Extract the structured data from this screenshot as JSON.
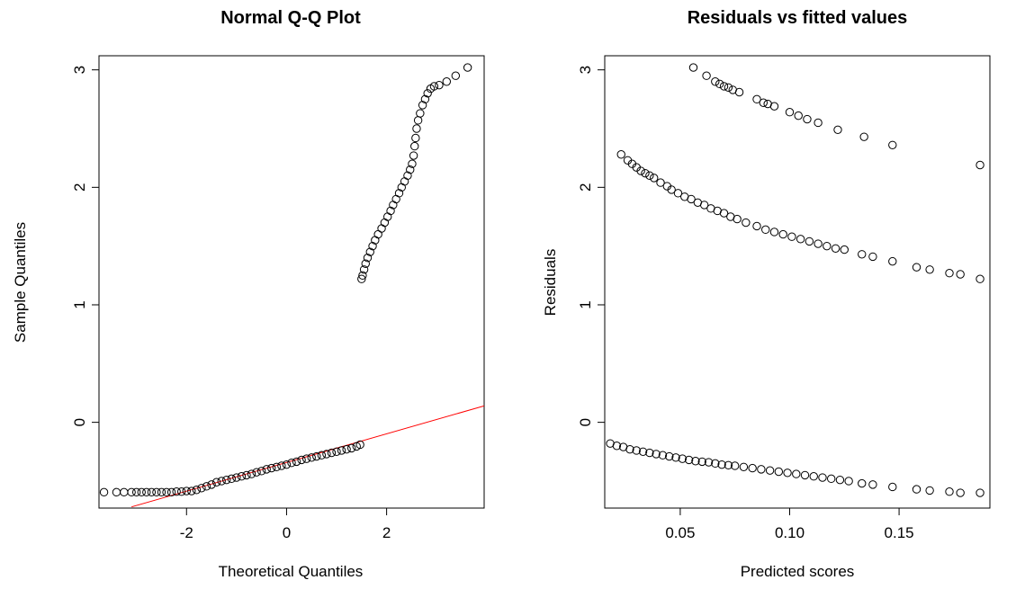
{
  "chart_data": [
    {
      "type": "scatter",
      "title": "Normal Q-Q Plot",
      "xlabel": "Theoretical Quantiles",
      "ylabel": "Sample Quantiles",
      "xlim": [
        -3.75,
        3.95
      ],
      "ylim": [
        -0.73,
        3.12
      ],
      "xticks": [
        -2,
        0,
        2
      ],
      "yticks": [
        0,
        1,
        2,
        3
      ],
      "xtick_labels": [
        "-2",
        "0",
        "2"
      ],
      "ytick_labels": [
        "0",
        "1",
        "2",
        "3"
      ],
      "grid": false,
      "point_marker": "open-circle",
      "reference_line": {
        "color": "#ff0000",
        "points": [
          [
            -3.1,
            -0.72
          ],
          [
            3.95,
            0.14
          ]
        ]
      },
      "series": [
        {
          "points": [
            [
              -3.65,
              -0.595
            ],
            [
              -3.4,
              -0.595
            ],
            [
              -3.25,
              -0.595
            ],
            [
              -3.1,
              -0.595
            ],
            [
              -3.0,
              -0.595
            ],
            [
              -2.9,
              -0.595
            ],
            [
              -2.8,
              -0.595
            ],
            [
              -2.7,
              -0.595
            ],
            [
              -2.6,
              -0.595
            ],
            [
              -2.5,
              -0.595
            ],
            [
              -2.4,
              -0.595
            ],
            [
              -2.3,
              -0.595
            ],
            [
              -2.2,
              -0.59
            ],
            [
              -2.1,
              -0.59
            ],
            [
              -2.0,
              -0.585
            ],
            [
              -1.9,
              -0.585
            ],
            [
              -1.8,
              -0.575
            ],
            [
              -1.7,
              -0.56
            ],
            [
              -1.6,
              -0.545
            ],
            [
              -1.5,
              -0.53
            ],
            [
              -1.4,
              -0.51
            ],
            [
              -1.3,
              -0.5
            ],
            [
              -1.2,
              -0.49
            ],
            [
              -1.1,
              -0.48
            ],
            [
              -1.0,
              -0.47
            ],
            [
              -0.9,
              -0.46
            ],
            [
              -0.8,
              -0.45
            ],
            [
              -0.7,
              -0.44
            ],
            [
              -0.6,
              -0.425
            ],
            [
              -0.5,
              -0.415
            ],
            [
              -0.4,
              -0.4
            ],
            [
              -0.3,
              -0.39
            ],
            [
              -0.2,
              -0.38
            ],
            [
              -0.1,
              -0.37
            ],
            [
              0.0,
              -0.36
            ],
            [
              0.1,
              -0.345
            ],
            [
              0.2,
              -0.335
            ],
            [
              0.3,
              -0.32
            ],
            [
              0.4,
              -0.31
            ],
            [
              0.5,
              -0.3
            ],
            [
              0.6,
              -0.29
            ],
            [
              0.7,
              -0.28
            ],
            [
              0.8,
              -0.27
            ],
            [
              0.9,
              -0.26
            ],
            [
              1.0,
              -0.25
            ],
            [
              1.1,
              -0.24
            ],
            [
              1.2,
              -0.23
            ],
            [
              1.3,
              -0.22
            ],
            [
              1.4,
              -0.205
            ],
            [
              1.47,
              -0.19
            ],
            [
              1.5,
              1.22
            ],
            [
              1.52,
              1.25
            ],
            [
              1.55,
              1.3
            ],
            [
              1.58,
              1.35
            ],
            [
              1.62,
              1.4
            ],
            [
              1.67,
              1.45
            ],
            [
              1.72,
              1.5
            ],
            [
              1.77,
              1.55
            ],
            [
              1.83,
              1.6
            ],
            [
              1.9,
              1.65
            ],
            [
              1.96,
              1.7
            ],
            [
              2.02,
              1.75
            ],
            [
              2.08,
              1.8
            ],
            [
              2.13,
              1.85
            ],
            [
              2.19,
              1.9
            ],
            [
              2.25,
              1.95
            ],
            [
              2.3,
              2.0
            ],
            [
              2.36,
              2.05
            ],
            [
              2.42,
              2.1
            ],
            [
              2.47,
              2.15
            ],
            [
              2.51,
              2.2
            ],
            [
              2.54,
              2.27
            ],
            [
              2.56,
              2.35
            ],
            [
              2.58,
              2.42
            ],
            [
              2.6,
              2.5
            ],
            [
              2.63,
              2.57
            ],
            [
              2.67,
              2.63
            ],
            [
              2.72,
              2.7
            ],
            [
              2.77,
              2.75
            ],
            [
              2.82,
              2.8
            ],
            [
              2.88,
              2.84
            ],
            [
              2.95,
              2.86
            ],
            [
              3.05,
              2.87
            ],
            [
              3.2,
              2.9
            ],
            [
              3.38,
              2.95
            ],
            [
              3.62,
              3.02
            ]
          ]
        }
      ]
    },
    {
      "type": "scatter",
      "title": "Residuals vs fitted values",
      "xlabel": "Predicted scores",
      "ylabel": "Residuals",
      "xlim": [
        0.0155,
        0.1915
      ],
      "ylim": [
        -0.73,
        3.12
      ],
      "xticks": [
        0.05,
        0.1,
        0.15
      ],
      "yticks": [
        0,
        1,
        2,
        3
      ],
      "xtick_labels": [
        "0.05",
        "0.10",
        "0.15"
      ],
      "ytick_labels": [
        "0",
        "1",
        "2",
        "3"
      ],
      "grid": false,
      "point_marker": "open-circle",
      "series": [
        {
          "points": [
            [
              0.056,
              3.02
            ],
            [
              0.062,
              2.95
            ],
            [
              0.066,
              2.9
            ],
            [
              0.068,
              2.88
            ],
            [
              0.07,
              2.86
            ],
            [
              0.072,
              2.85
            ],
            [
              0.074,
              2.83
            ],
            [
              0.077,
              2.81
            ],
            [
              0.085,
              2.75
            ],
            [
              0.088,
              2.72
            ],
            [
              0.09,
              2.71
            ],
            [
              0.093,
              2.69
            ],
            [
              0.1,
              2.64
            ],
            [
              0.104,
              2.61
            ],
            [
              0.108,
              2.58
            ],
            [
              0.113,
              2.55
            ],
            [
              0.122,
              2.49
            ],
            [
              0.134,
              2.43
            ],
            [
              0.147,
              2.36
            ],
            [
              0.187,
              2.19
            ],
            [
              0.023,
              2.28
            ],
            [
              0.026,
              2.23
            ],
            [
              0.028,
              2.2
            ],
            [
              0.03,
              2.17
            ],
            [
              0.032,
              2.14
            ],
            [
              0.034,
              2.12
            ],
            [
              0.036,
              2.1
            ],
            [
              0.038,
              2.08
            ],
            [
              0.041,
              2.04
            ],
            [
              0.044,
              2.01
            ],
            [
              0.046,
              1.98
            ],
            [
              0.049,
              1.95
            ],
            [
              0.052,
              1.92
            ],
            [
              0.055,
              1.9
            ],
            [
              0.058,
              1.87
            ],
            [
              0.061,
              1.85
            ],
            [
              0.064,
              1.82
            ],
            [
              0.067,
              1.8
            ],
            [
              0.07,
              1.78
            ],
            [
              0.073,
              1.75
            ],
            [
              0.076,
              1.73
            ],
            [
              0.08,
              1.7
            ],
            [
              0.085,
              1.67
            ],
            [
              0.089,
              1.64
            ],
            [
              0.093,
              1.62
            ],
            [
              0.097,
              1.6
            ],
            [
              0.101,
              1.58
            ],
            [
              0.105,
              1.56
            ],
            [
              0.109,
              1.54
            ],
            [
              0.113,
              1.52
            ],
            [
              0.117,
              1.5
            ],
            [
              0.121,
              1.48
            ],
            [
              0.125,
              1.47
            ],
            [
              0.133,
              1.43
            ],
            [
              0.138,
              1.41
            ],
            [
              0.147,
              1.37
            ],
            [
              0.158,
              1.32
            ],
            [
              0.164,
              1.3
            ],
            [
              0.173,
              1.27
            ],
            [
              0.178,
              1.26
            ],
            [
              0.187,
              1.22
            ],
            [
              0.018,
              -0.18
            ],
            [
              0.021,
              -0.2
            ],
            [
              0.024,
              -0.21
            ],
            [
              0.027,
              -0.23
            ],
            [
              0.03,
              -0.24
            ],
            [
              0.033,
              -0.25
            ],
            [
              0.036,
              -0.26
            ],
            [
              0.039,
              -0.27
            ],
            [
              0.042,
              -0.28
            ],
            [
              0.045,
              -0.29
            ],
            [
              0.048,
              -0.3
            ],
            [
              0.051,
              -0.31
            ],
            [
              0.054,
              -0.32
            ],
            [
              0.057,
              -0.33
            ],
            [
              0.06,
              -0.335
            ],
            [
              0.063,
              -0.34
            ],
            [
              0.066,
              -0.35
            ],
            [
              0.069,
              -0.36
            ],
            [
              0.072,
              -0.365
            ],
            [
              0.075,
              -0.37
            ],
            [
              0.079,
              -0.38
            ],
            [
              0.083,
              -0.39
            ],
            [
              0.087,
              -0.4
            ],
            [
              0.091,
              -0.41
            ],
            [
              0.095,
              -0.42
            ],
            [
              0.099,
              -0.43
            ],
            [
              0.103,
              -0.44
            ],
            [
              0.107,
              -0.45
            ],
            [
              0.111,
              -0.46
            ],
            [
              0.115,
              -0.47
            ],
            [
              0.119,
              -0.48
            ],
            [
              0.123,
              -0.49
            ],
            [
              0.127,
              -0.5
            ],
            [
              0.133,
              -0.52
            ],
            [
              0.138,
              -0.53
            ],
            [
              0.147,
              -0.55
            ],
            [
              0.158,
              -0.57
            ],
            [
              0.164,
              -0.58
            ],
            [
              0.173,
              -0.59
            ],
            [
              0.178,
              -0.6
            ],
            [
              0.187,
              -0.6
            ]
          ]
        }
      ]
    }
  ]
}
